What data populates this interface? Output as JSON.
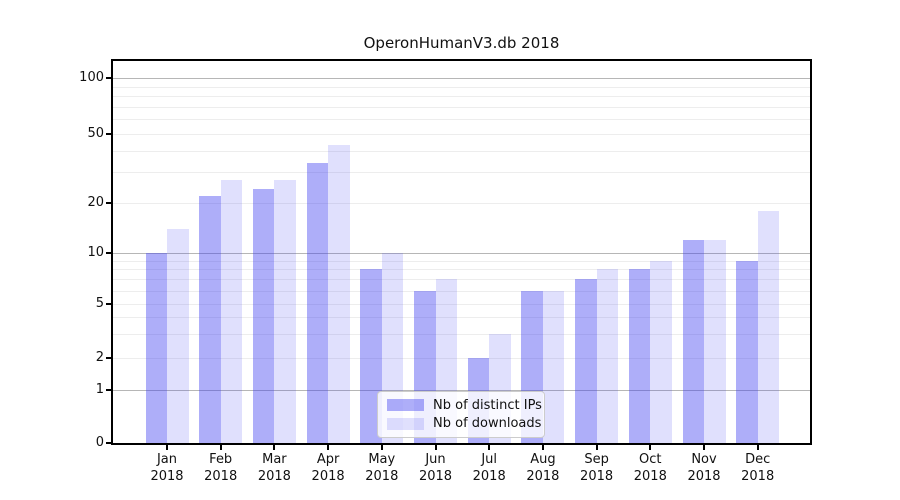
{
  "title": "OperonHumanV3.db 2018",
  "legend": {
    "items": [
      {
        "label": "Nb of distinct IPs",
        "color": "rgba(62,62,240,0.42)"
      },
      {
        "label": "Nb of downloads",
        "color": "rgba(62,62,240,0.16)"
      }
    ]
  },
  "chart_data": {
    "type": "bar",
    "title": "OperonHumanV3.db 2018",
    "categories": [
      "Jan 2018",
      "Feb 2018",
      "Mar 2018",
      "Apr 2018",
      "May 2018",
      "Jun 2018",
      "Jul 2018",
      "Aug 2018",
      "Sep 2018",
      "Oct 2018",
      "Nov 2018",
      "Dec 2018"
    ],
    "series": [
      {
        "name": "Nb of distinct IPs",
        "color": "rgba(62,62,240,0.42)",
        "values": [
          10,
          22,
          24,
          34,
          8,
          6,
          2,
          6,
          7,
          8,
          12,
          9
        ]
      },
      {
        "name": "Nb of downloads",
        "color": "rgba(62,62,240,0.16)",
        "values": [
          14,
          27,
          27,
          43,
          10,
          7,
          3,
          6,
          8,
          9,
          12,
          18
        ]
      }
    ],
    "xlabel": "",
    "ylabel": "",
    "yaxis": {
      "scale": "symlog",
      "tick_labels": [
        "0",
        "1",
        "2",
        "5",
        "10",
        "20",
        "50",
        "100"
      ],
      "tick_values": [
        0,
        1,
        2,
        5,
        10,
        20,
        50,
        100
      ],
      "major_gridlines": [
        1,
        10,
        100
      ],
      "minor_gridlines": [
        2,
        3,
        4,
        5,
        6,
        7,
        8,
        9,
        20,
        30,
        40,
        50,
        60,
        70,
        80,
        90
      ],
      "ylim": [
        0,
        125
      ]
    },
    "grid": true,
    "legend_position": "lower center inside plot"
  }
}
